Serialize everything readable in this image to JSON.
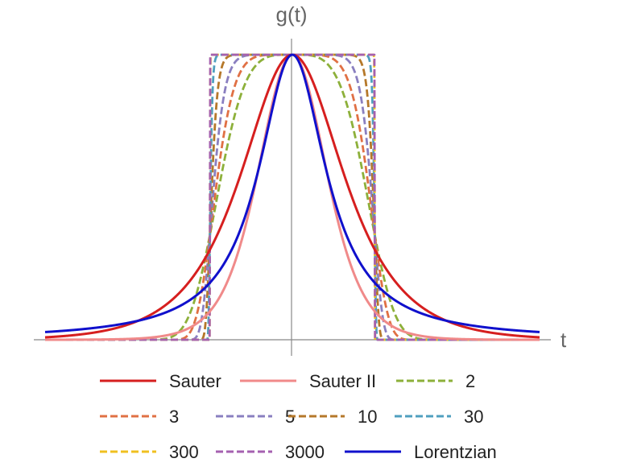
{
  "chart_data": {
    "type": "line",
    "xlabel": "t",
    "ylabel": "g(t)",
    "xlim": [
      -3,
      3
    ],
    "ylim": [
      0,
      1
    ],
    "grid": false,
    "legend_position": "bottom",
    "series": [
      {
        "name": "Sauter",
        "kind": "sech",
        "width": 0.55,
        "color": "#d61f1f",
        "dash": false
      },
      {
        "name": "Sauter II",
        "kind": "sech2",
        "width": 0.55,
        "color": "#f08a8a",
        "dash": false
      },
      {
        "name": "2",
        "kind": "supergauss",
        "n": 2,
        "width": 1,
        "color": "#8db03a",
        "dash": true
      },
      {
        "name": "3",
        "kind": "supergauss",
        "n": 3,
        "width": 1,
        "color": "#e07044",
        "dash": true
      },
      {
        "name": "5",
        "kind": "supergauss",
        "n": 5,
        "width": 1,
        "color": "#8a7fc0",
        "dash": true
      },
      {
        "name": "10",
        "kind": "supergauss",
        "n": 10,
        "width": 1,
        "color": "#b5782a",
        "dash": true
      },
      {
        "name": "30",
        "kind": "supergauss",
        "n": 30,
        "width": 1,
        "color": "#4f9fbf",
        "dash": true
      },
      {
        "name": "300",
        "kind": "supergauss",
        "n": 300,
        "width": 1,
        "color": "#f0c020",
        "dash": true
      },
      {
        "name": "3000",
        "kind": "supergauss",
        "n": 3000,
        "width": 1,
        "color": "#a560b0",
        "dash": true
      },
      {
        "name": "Lorentzian",
        "kind": "lorentz",
        "width": 0.5,
        "color": "#1010cc",
        "dash": false
      }
    ]
  }
}
